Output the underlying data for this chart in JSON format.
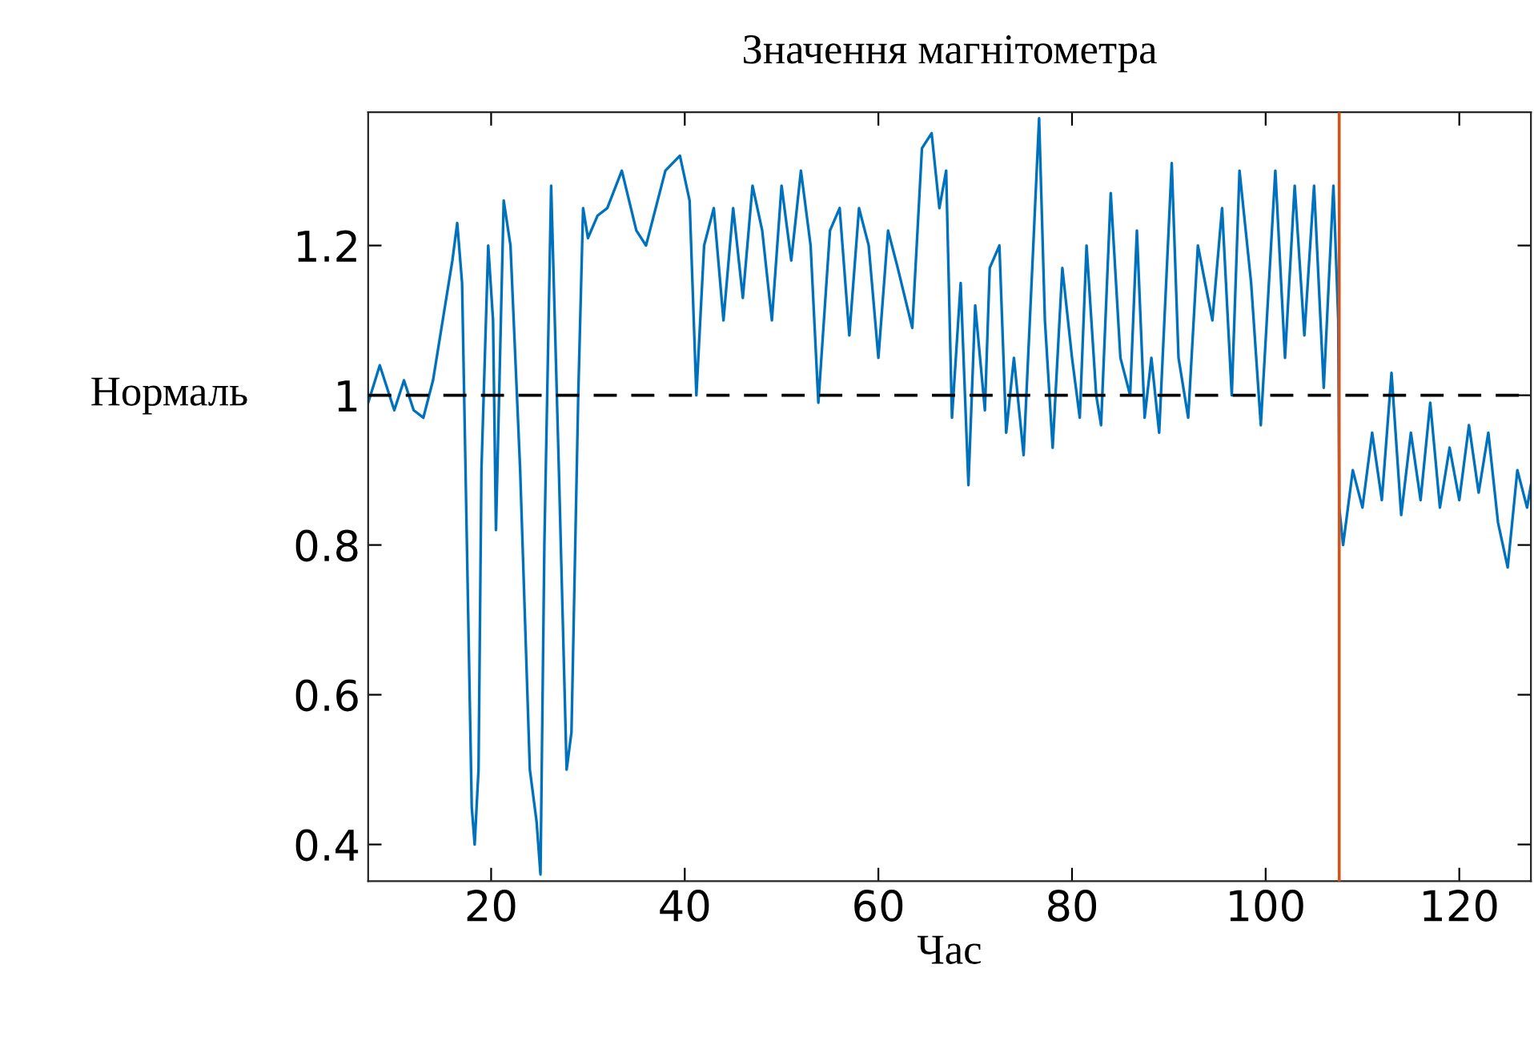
{
  "chart_data": {
    "type": "line",
    "title": "Значення магнітометра",
    "xlabel": "Час",
    "x": [
      7.3,
      8.5,
      10,
      11,
      12,
      13,
      14,
      15,
      16,
      16.5,
      17,
      17.5,
      18,
      18.3,
      18.7,
      19,
      19.7,
      20.2,
      20.5,
      21.3,
      22,
      23,
      24,
      24.7,
      25.1,
      25.5,
      26.2,
      27,
      27.8,
      28.3,
      29,
      29.5,
      30,
      31,
      32,
      33.5,
      35,
      36,
      38,
      39.5,
      40.5,
      41.2,
      42,
      43,
      44,
      45,
      46,
      47,
      48,
      49,
      50,
      51,
      52,
      53,
      53.8,
      55,
      56,
      57,
      58,
      59,
      60,
      61,
      62,
      63.5,
      64.5,
      65.5,
      66.3,
      67,
      67.6,
      68.5,
      69.3,
      70,
      71,
      71.5,
      72.5,
      73.2,
      74,
      75,
      76,
      76.6,
      77.2,
      78,
      79,
      80,
      80.8,
      81.5,
      82.5,
      83,
      84,
      85,
      86,
      86.7,
      87.5,
      88.2,
      89,
      90.3,
      91,
      92,
      93,
      94.5,
      95.5,
      96.5,
      97.3,
      98.5,
      99.5,
      101,
      102,
      103,
      104,
      105,
      106,
      107,
      107.5,
      107.6,
      108,
      109,
      110,
      111,
      112,
      113,
      114,
      115,
      116,
      117,
      118,
      119,
      120,
      121,
      122,
      123,
      124,
      125,
      126,
      127,
      127.4
    ],
    "series": [
      {
        "color": "#0072bd",
        "values": [
          0.99,
          1.04,
          0.98,
          1.02,
          0.98,
          0.97,
          1.02,
          1.1,
          1.18,
          1.23,
          1.15,
          0.8,
          0.45,
          0.4,
          0.5,
          0.9,
          1.2,
          1.1,
          0.82,
          1.26,
          1.2,
          0.9,
          0.5,
          0.43,
          0.36,
          0.8,
          1.28,
          0.9,
          0.5,
          0.55,
          1.0,
          1.25,
          1.21,
          1.24,
          1.25,
          1.3,
          1.22,
          1.2,
          1.3,
          1.32,
          1.26,
          1.0,
          1.2,
          1.25,
          1.1,
          1.25,
          1.13,
          1.28,
          1.22,
          1.1,
          1.28,
          1.18,
          1.3,
          1.2,
          0.99,
          1.22,
          1.25,
          1.08,
          1.25,
          1.2,
          1.05,
          1.22,
          1.17,
          1.09,
          1.33,
          1.35,
          1.25,
          1.3,
          0.97,
          1.15,
          0.88,
          1.12,
          0.98,
          1.17,
          1.2,
          0.95,
          1.05,
          0.92,
          1.2,
          1.37,
          1.1,
          0.93,
          1.17,
          1.05,
          0.97,
          1.2,
          1.0,
          0.96,
          1.27,
          1.05,
          1.0,
          1.22,
          0.97,
          1.05,
          0.95,
          1.31,
          1.05,
          0.97,
          1.2,
          1.1,
          1.25,
          1.0,
          1.3,
          1.15,
          0.96,
          1.3,
          1.05,
          1.28,
          1.08,
          1.28,
          1.01,
          1.28,
          1.1,
          0.85,
          0.8,
          0.9,
          0.85,
          0.95,
          0.86,
          1.03,
          0.84,
          0.95,
          0.86,
          0.99,
          0.85,
          0.93,
          0.86,
          0.96,
          0.87,
          0.95,
          0.83,
          0.77,
          0.9,
          0.85,
          0.88
        ]
      }
    ],
    "xlim": [
      7.3,
      127.4
    ],
    "ylim": [
      0.351,
      1.378
    ],
    "xticks": [
      20,
      40,
      60,
      80,
      100,
      120
    ],
    "yticks": [
      0.4,
      0.6,
      0.8,
      1,
      1.2
    ],
    "ref_lines": [
      {
        "axis": "y",
        "value": 1,
        "label": "Нормаль",
        "color": "#000000",
        "line_style": "dashed"
      },
      {
        "axis": "x",
        "value": 107.6,
        "color": "#d95319",
        "line_style": "solid"
      }
    ],
    "grid": false,
    "legend": false,
    "marker": "none",
    "line_style": "solid"
  }
}
